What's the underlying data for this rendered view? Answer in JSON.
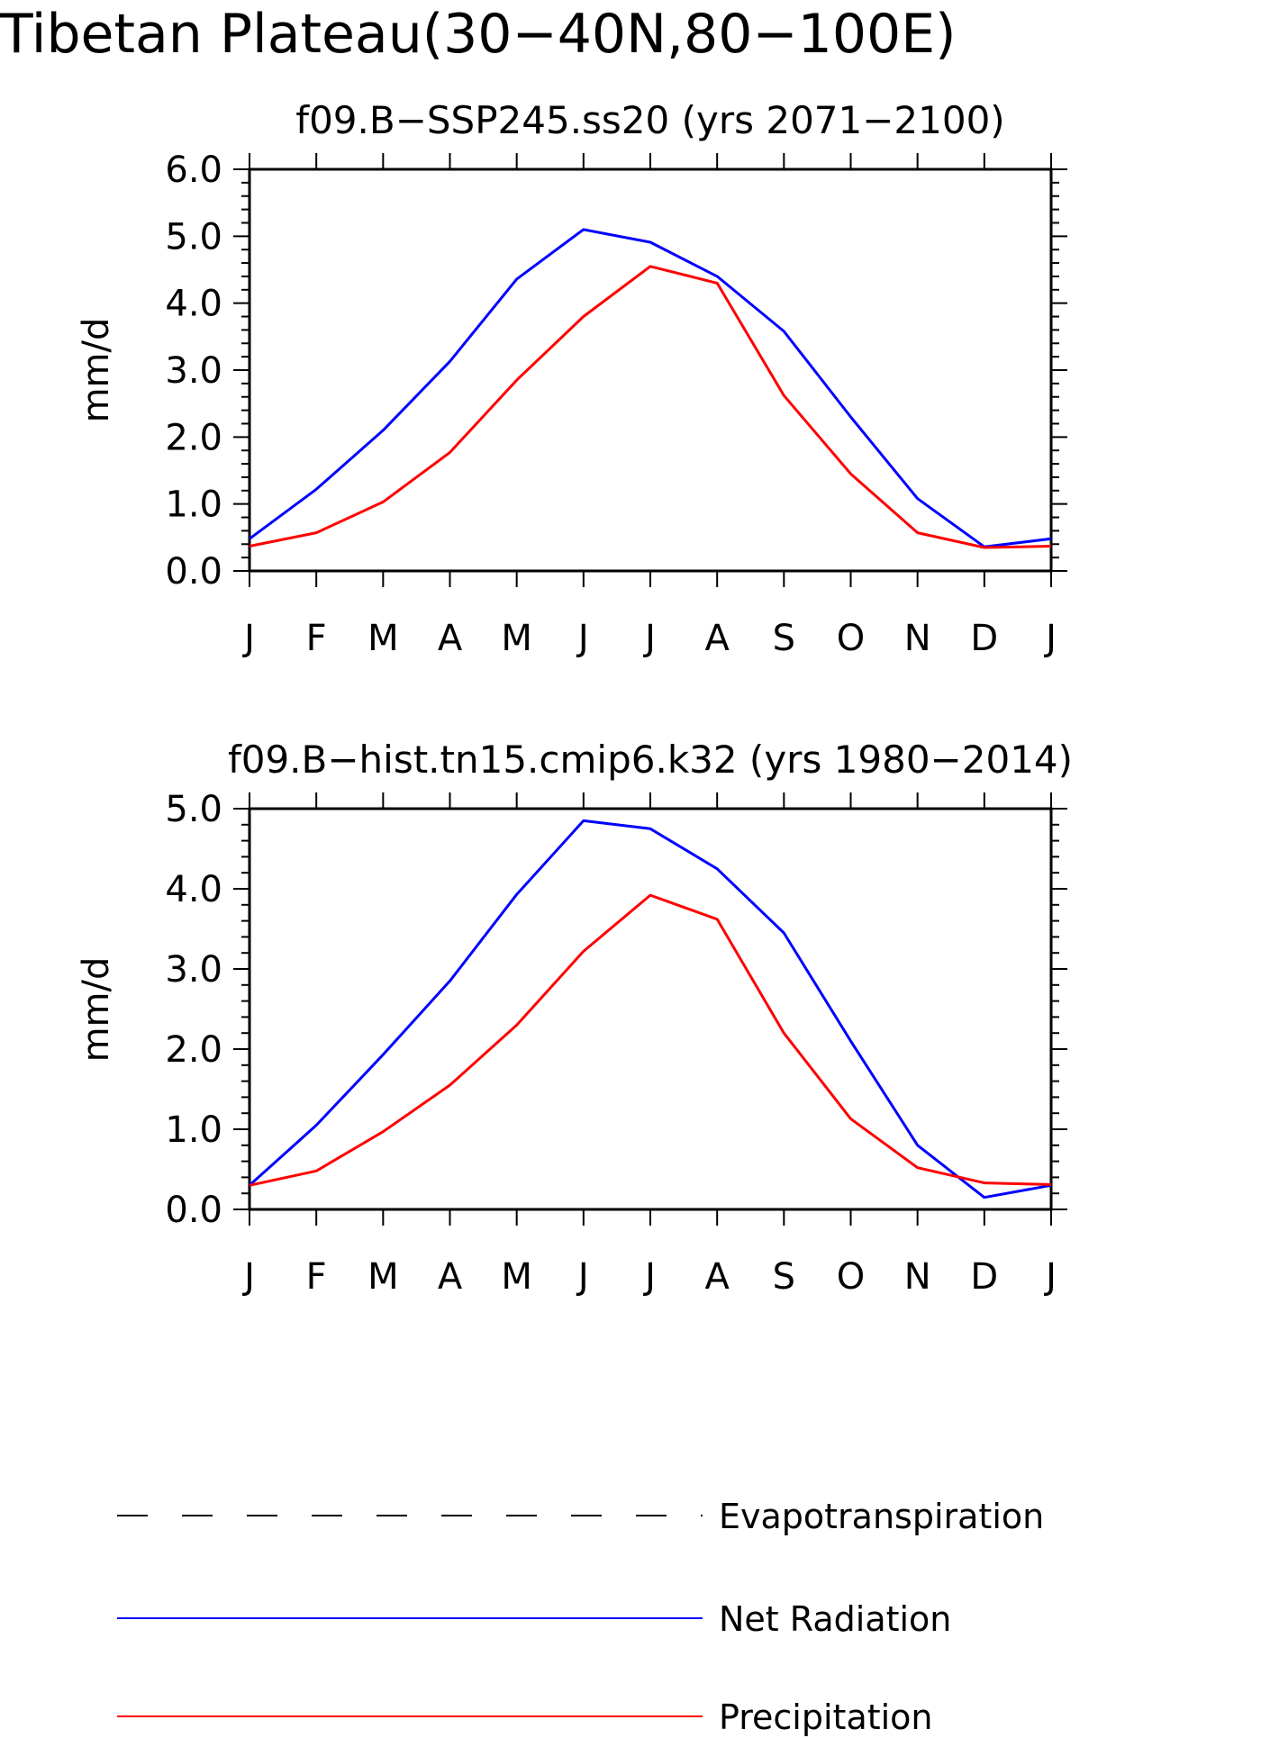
{
  "title": "Tibetan Plateau(30−40N,80−100E)",
  "legend": {
    "items": [
      {
        "label": "Evapotranspiration",
        "color": "#000000",
        "style": "dashed"
      },
      {
        "label": "Net Radiation",
        "color": "#0000ff",
        "style": "solid"
      },
      {
        "label": "Precipitation",
        "color": "#ff0000",
        "style": "solid"
      }
    ]
  },
  "chart_data": [
    {
      "type": "line",
      "title": "f09.B−SSP245.ss20 (yrs 2071−2100)",
      "ylabel": "mm/d",
      "xlabel": "",
      "categories": [
        "J",
        "F",
        "M",
        "A",
        "M",
        "J",
        "J",
        "A",
        "S",
        "O",
        "N",
        "D",
        "J"
      ],
      "ylim": [
        0,
        6
      ],
      "yticks": [
        "0.0",
        "1.0",
        "2.0",
        "3.0",
        "4.0",
        "5.0",
        "6.0"
      ],
      "grid": false,
      "series": [
        {
          "name": "Net Radiation",
          "color": "#0000ff",
          "values": [
            0.48,
            1.22,
            2.1,
            3.13,
            4.36,
            5.1,
            4.91,
            4.4,
            3.58,
            2.3,
            1.08,
            0.36,
            0.48
          ]
        },
        {
          "name": "Precipitation",
          "color": "#ff0000",
          "values": [
            0.37,
            0.57,
            1.03,
            1.77,
            2.85,
            3.8,
            4.55,
            4.3,
            2.62,
            1.45,
            0.57,
            0.35,
            0.37
          ]
        }
      ]
    },
    {
      "type": "line",
      "title": "f09.B−hist.tn15.cmip6.k32 (yrs 1980−2014)",
      "ylabel": "mm/d",
      "xlabel": "",
      "categories": [
        "J",
        "F",
        "M",
        "A",
        "M",
        "J",
        "J",
        "A",
        "S",
        "O",
        "N",
        "D",
        "J"
      ],
      "ylim": [
        0,
        5
      ],
      "yticks": [
        "0.0",
        "1.0",
        "2.0",
        "3.0",
        "4.0",
        "5.0"
      ],
      "grid": false,
      "series": [
        {
          "name": "Net Radiation",
          "color": "#0000ff",
          "values": [
            0.3,
            1.05,
            1.93,
            2.85,
            3.93,
            4.85,
            4.75,
            4.25,
            3.45,
            2.1,
            0.8,
            0.15,
            0.3
          ]
        },
        {
          "name": "Precipitation",
          "color": "#ff0000",
          "values": [
            0.3,
            0.48,
            0.97,
            1.55,
            2.3,
            3.22,
            3.92,
            3.62,
            2.2,
            1.13,
            0.52,
            0.33,
            0.31
          ]
        }
      ]
    }
  ]
}
